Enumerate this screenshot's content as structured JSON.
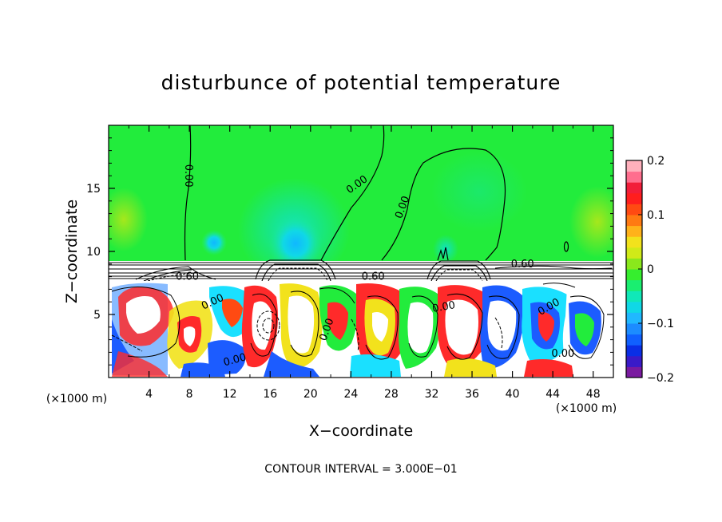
{
  "chart_data": {
    "type": "heatmap",
    "title": "disturbunce of potential temperature",
    "xlabel": "X−coordinate",
    "ylabel": "Z−coordinate",
    "x_unit_left": "(×1000 m)",
    "x_unit_right": "(×1000 m)",
    "footer": "CONTOUR INTERVAL = 3.000E−01",
    "xlim": [
      0,
      50
    ],
    "ylim": [
      0,
      20
    ],
    "x_ticks": [
      4,
      8,
      12,
      16,
      20,
      24,
      28,
      32,
      36,
      40,
      44,
      48
    ],
    "x_tick_labels": [
      "4",
      "8",
      "12",
      "16",
      "20",
      "24",
      "28",
      "32",
      "36",
      "40",
      "44",
      "48"
    ],
    "y_ticks": [
      5,
      10,
      15
    ],
    "y_tick_labels": [
      "5",
      "10",
      "15"
    ],
    "colorbar": {
      "range": [
        -0.2,
        0.2
      ],
      "ticks": [
        0.2,
        0.1,
        0,
        -0.1,
        -0.2
      ],
      "tick_labels": [
        "0.2",
        "0.1",
        "0",
        "−0.1",
        "−0.2"
      ],
      "colors": [
        "#7a1aa0",
        "#3a1ac8",
        "#0a2ee6",
        "#1060ff",
        "#1c8cff",
        "#20b8ff",
        "#10d8e6",
        "#10e8b8",
        "#1aee70",
        "#36ee2e",
        "#8ae81c",
        "#d0ea18",
        "#f2e21c",
        "#ffb21a",
        "#ff7a12",
        "#ff4a12",
        "#ff1e1e",
        "#f21e3a",
        "#ff6e8e",
        "#ffb0bc"
      ]
    },
    "contour_labels": [
      {
        "text": "0.00",
        "x": 7.9,
        "y": 16.0,
        "angle": 90
      },
      {
        "text": "0.00",
        "x": 24.6,
        "y": 15.3,
        "angle": -35
      },
      {
        "text": "0.00",
        "x": 29.1,
        "y": 13.5,
        "angle": -70
      },
      {
        "text": "0.60",
        "x": 41.0,
        "y": 9.0,
        "angle": 0
      },
      {
        "text": "0.60",
        "x": 7.8,
        "y": 8.0,
        "angle": 0
      },
      {
        "text": "0.60",
        "x": 26.2,
        "y": 8.0,
        "angle": 0
      },
      {
        "text": "0.00",
        "x": 10.3,
        "y": 6.0,
        "angle": -25
      },
      {
        "text": "0.00",
        "x": 33.2,
        "y": 5.6,
        "angle": -10
      },
      {
        "text": "0.00",
        "x": 43.6,
        "y": 5.6,
        "angle": -30
      },
      {
        "text": "0.00",
        "x": 21.6,
        "y": 3.8,
        "angle": -70
      },
      {
        "text": "0.00",
        "x": 12.5,
        "y": 1.4,
        "angle": -15
      },
      {
        "text": "0.00",
        "x": 45.0,
        "y": 1.9,
        "angle": 0
      }
    ]
  }
}
